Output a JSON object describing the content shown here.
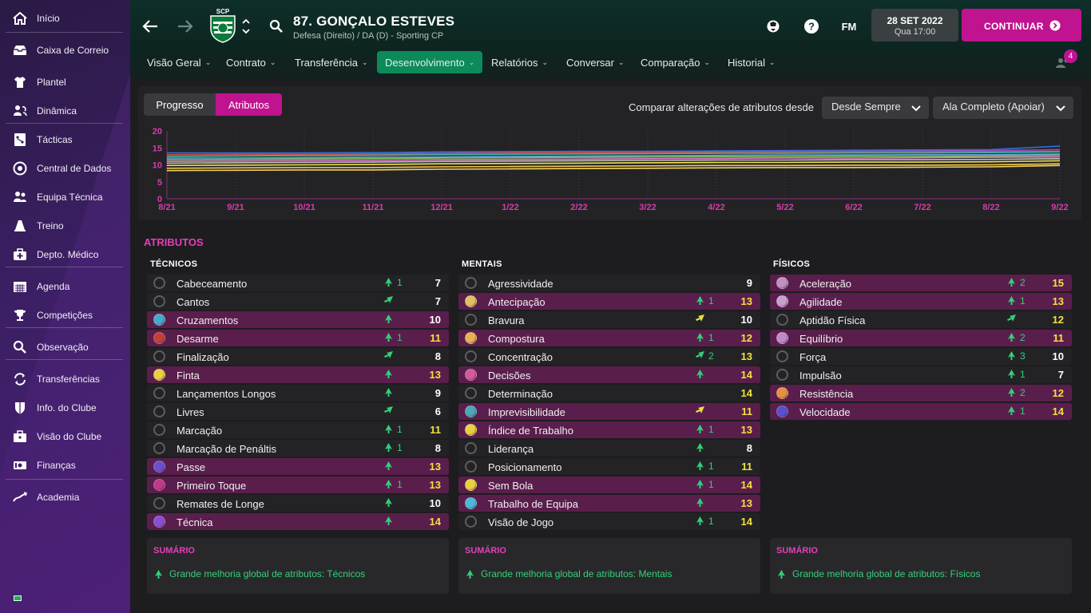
{
  "sidebar": {
    "items": [
      {
        "label": "Início",
        "icon": "home-icon"
      },
      {
        "label": "Caixa de Correio",
        "icon": "inbox-icon"
      },
      {
        "label": "Plantel",
        "icon": "shirt-icon"
      },
      {
        "label": "Dinâmica",
        "icon": "people-icon"
      },
      {
        "label": "Tácticas",
        "icon": "tactics-icon"
      },
      {
        "label": "Central de Dados",
        "icon": "data-hub-icon"
      },
      {
        "label": "Equipa Técnica",
        "icon": "staff-icon"
      },
      {
        "label": "Treino",
        "icon": "cone-icon"
      },
      {
        "label": "Depto. Médico",
        "icon": "medical-kit-icon"
      },
      {
        "label": "Agenda",
        "icon": "calendar-icon"
      },
      {
        "label": "Competições",
        "icon": "trophy-icon"
      },
      {
        "label": "Observação",
        "icon": "magnifier-icon"
      },
      {
        "label": "Transferências",
        "icon": "transfer-icon"
      },
      {
        "label": "Info. do Clube",
        "icon": "shield-icon"
      },
      {
        "label": "Visão do Clube",
        "icon": "briefcase-icon"
      },
      {
        "label": "Finanças",
        "icon": "money-icon"
      },
      {
        "label": "Academia",
        "icon": "academy-icon"
      }
    ]
  },
  "header": {
    "club_badge_text": "SCP",
    "player_name": "87. GONÇALO ESTEVES",
    "player_subtitle": "Defesa (Direito) / DA (D) - Sporting CP",
    "fm_label": "FM",
    "date": "28 SET 2022",
    "date_sub": "Qua 17:00",
    "continue_label": "CONTINUAR",
    "notification_count": "4"
  },
  "tabs": [
    {
      "label": "Visão Geral"
    },
    {
      "label": "Contrato"
    },
    {
      "label": "Transferência"
    },
    {
      "label": "Desenvolvimento"
    },
    {
      "label": "Relatórios"
    },
    {
      "label": "Conversar"
    },
    {
      "label": "Comparação"
    },
    {
      "label": "Historial"
    }
  ],
  "development": {
    "view_toggle": {
      "progress": "Progresso",
      "attributes": "Atributos"
    },
    "compare_label": "Comparar alterações de atributos desde",
    "since_dropdown": "Desde Sempre",
    "role_dropdown": "Ala Completo (Apoiar)"
  },
  "chart_data": {
    "type": "line",
    "x": [
      "8/21",
      "9/21",
      "10/21",
      "11/21",
      "12/21",
      "1/22",
      "2/22",
      "3/22",
      "4/22",
      "5/22",
      "6/22",
      "7/22",
      "8/22",
      "9/22"
    ],
    "y_ticks": [
      "20",
      "15",
      "10",
      "5",
      "0"
    ],
    "ylim": [
      0,
      20
    ],
    "series": [
      {
        "color": "#2f6fd6",
        "values": [
          13.5,
          13.5,
          13.5,
          13.6,
          13.8,
          13.9,
          14,
          14,
          14.1,
          14.2,
          14.3,
          14.4,
          14.5,
          15.5
        ]
      },
      {
        "color": "#8a4fd8",
        "values": [
          13,
          13,
          13,
          13.2,
          13.4,
          13.6,
          13.7,
          13.8,
          13.9,
          14,
          14,
          14.1,
          14.2,
          14.5
        ]
      },
      {
        "color": "#c94b3f",
        "values": [
          13,
          13.1,
          13.1,
          13.2,
          13.3,
          13.5,
          13.6,
          13.6,
          13.7,
          13.7,
          13.8,
          13.8,
          13.9,
          14
        ]
      },
      {
        "color": "#3fb6a5",
        "values": [
          12.5,
          12.6,
          12.7,
          12.8,
          13,
          13.1,
          13.2,
          13.3,
          13.4,
          13.4,
          13.5,
          13.5,
          13.6,
          13.8
        ]
      },
      {
        "color": "#5fa8d9",
        "values": [
          12,
          12,
          12.1,
          12.2,
          12.3,
          12.5,
          12.6,
          12.7,
          12.8,
          12.9,
          12.9,
          13,
          13,
          13.2
        ]
      },
      {
        "color": "#7ec25a",
        "values": [
          11.5,
          11.6,
          11.7,
          11.8,
          12,
          12.1,
          12.2,
          12.3,
          12.4,
          12.4,
          12.5,
          12.5,
          12.6,
          12.8
        ]
      },
      {
        "color": "#e07cc7",
        "values": [
          11,
          11.1,
          11.2,
          11.3,
          11.5,
          11.6,
          11.7,
          11.8,
          11.9,
          12,
          12,
          12.1,
          12.2,
          12.3
        ]
      },
      {
        "color": "#c0c0c0",
        "values": [
          10.5,
          10.6,
          10.7,
          10.8,
          11,
          11.1,
          11.2,
          11.3,
          11.4,
          11.4,
          11.5,
          11.5,
          11.6,
          11.8
        ]
      },
      {
        "color": "#f2e24a",
        "values": [
          9.8,
          9.9,
          10,
          10.1,
          10.3,
          10.4,
          10.5,
          10.6,
          10.7,
          10.7,
          10.8,
          10.8,
          10.9,
          11.2
        ]
      },
      {
        "color": "#f5c84a",
        "values": [
          9,
          9.1,
          9.2,
          9.2,
          9.4,
          9.5,
          9.6,
          9.7,
          9.8,
          9.8,
          9.9,
          9.9,
          10,
          10.3
        ]
      },
      {
        "color": "#f0d35a",
        "values": [
          8.3,
          8.4,
          8.5,
          8.5,
          8.7,
          8.8,
          8.9,
          9,
          9.1,
          9.2,
          9.2,
          9.3,
          9.4,
          9.8
        ]
      }
    ]
  },
  "attributes_title": "ATRIBUTOS",
  "columns": [
    {
      "title": "TÉCNICOS",
      "rows": [
        {
          "name": "Cabeceamento",
          "arrow": "up",
          "change": "1",
          "value": "7",
          "hl": false,
          "color": "#6a6a6e",
          "yellow": false
        },
        {
          "name": "Cantos",
          "arrow": "diag",
          "change": "",
          "value": "7",
          "hl": false,
          "color": "#6a6a6e",
          "yellow": false
        },
        {
          "name": "Cruzamentos",
          "arrow": "up",
          "change": "",
          "value": "10",
          "hl": true,
          "color": "#4aa8c8",
          "yellow": false
        },
        {
          "name": "Desarme",
          "arrow": "up",
          "change": "1",
          "value": "11",
          "hl": true,
          "color": "#c0403a",
          "yellow": true
        },
        {
          "name": "Finalização",
          "arrow": "diag",
          "change": "",
          "value": "8",
          "hl": false,
          "color": "#6a6a6e",
          "yellow": false
        },
        {
          "name": "Finta",
          "arrow": "up",
          "change": "",
          "value": "13",
          "hl": true,
          "color": "#e8d040",
          "yellow": true
        },
        {
          "name": "Lançamentos Longos",
          "arrow": "up",
          "change": "",
          "value": "9",
          "hl": false,
          "color": "#6a6a6e",
          "yellow": false
        },
        {
          "name": "Livres",
          "arrow": "diag",
          "change": "",
          "value": "6",
          "hl": false,
          "color": "#6a6a6e",
          "yellow": false
        },
        {
          "name": "Marcação",
          "arrow": "up",
          "change": "1",
          "value": "11",
          "hl": false,
          "color": "#6a6a6e",
          "yellow": true
        },
        {
          "name": "Marcação de Penáltis",
          "arrow": "up",
          "change": "1",
          "value": "8",
          "hl": false,
          "color": "#6a6a6e",
          "yellow": false
        },
        {
          "name": "Passe",
          "arrow": "up",
          "change": "",
          "value": "13",
          "hl": true,
          "color": "#6a4fd0",
          "yellow": true
        },
        {
          "name": "Primeiro Toque",
          "arrow": "up",
          "change": "1",
          "value": "13",
          "hl": true,
          "color": "#c03a8a",
          "yellow": true
        },
        {
          "name": "Remates de Longe",
          "arrow": "up",
          "change": "",
          "value": "10",
          "hl": false,
          "color": "#6a6a6e",
          "yellow": false
        },
        {
          "name": "Técnica",
          "arrow": "up",
          "change": "",
          "value": "14",
          "hl": true,
          "color": "#8a4fd0",
          "yellow": true
        }
      ]
    },
    {
      "title": "MENTAIS",
      "rows": [
        {
          "name": "Agressividade",
          "arrow": "",
          "change": "",
          "value": "9",
          "hl": false,
          "color": "#6a6a6e",
          "yellow": false
        },
        {
          "name": "Antecipação",
          "arrow": "up",
          "change": "1",
          "value": "13",
          "hl": true,
          "color": "#e0c060",
          "yellow": true
        },
        {
          "name": "Bravura",
          "arrow": "diagy",
          "change": "",
          "value": "10",
          "hl": false,
          "color": "#6a6a6e",
          "yellow": false
        },
        {
          "name": "Compostura",
          "arrow": "up",
          "change": "1",
          "value": "12",
          "hl": true,
          "color": "#e8b050",
          "yellow": true
        },
        {
          "name": "Concentração",
          "arrow": "diag",
          "change": "2",
          "value": "13",
          "hl": false,
          "color": "#6a6a6e",
          "yellow": true
        },
        {
          "name": "Decisões",
          "arrow": "up",
          "change": "",
          "value": "14",
          "hl": true,
          "color": "#d05a9a",
          "yellow": true
        },
        {
          "name": "Determinação",
          "arrow": "",
          "change": "",
          "value": "14",
          "hl": false,
          "color": "#6a6a6e",
          "yellow": true
        },
        {
          "name": "Imprevisibilidade",
          "arrow": "diagy",
          "change": "",
          "value": "11",
          "hl": true,
          "color": "#4aa8b8",
          "yellow": true
        },
        {
          "name": "Índice de Trabalho",
          "arrow": "up",
          "change": "1",
          "value": "13",
          "hl": true,
          "color": "#e8d040",
          "yellow": true
        },
        {
          "name": "Liderança",
          "arrow": "up",
          "change": "",
          "value": "8",
          "hl": false,
          "color": "#6a6a6e",
          "yellow": false
        },
        {
          "name": "Posicionamento",
          "arrow": "up",
          "change": "1",
          "value": "11",
          "hl": false,
          "color": "#6a6a6e",
          "yellow": true
        },
        {
          "name": "Sem Bola",
          "arrow": "up",
          "change": "1",
          "value": "14",
          "hl": true,
          "color": "#e8d040",
          "yellow": true
        },
        {
          "name": "Trabalho de Equipa",
          "arrow": "up",
          "change": "",
          "value": "13",
          "hl": true,
          "color": "#4ab8d8",
          "yellow": true
        },
        {
          "name": "Visão de Jogo",
          "arrow": "up",
          "change": "1",
          "value": "14",
          "hl": false,
          "color": "#6a6a6e",
          "yellow": true
        }
      ]
    },
    {
      "title": "FÍSICOS",
      "rows": [
        {
          "name": "Aceleração",
          "arrow": "up",
          "change": "2",
          "value": "15",
          "hl": true,
          "color": "#c090c0",
          "yellow": true
        },
        {
          "name": "Agilidade",
          "arrow": "up",
          "change": "1",
          "value": "13",
          "hl": true,
          "color": "#c8a0d0",
          "yellow": true
        },
        {
          "name": "Aptidão Física",
          "arrow": "diag",
          "change": "",
          "value": "12",
          "hl": false,
          "color": "#6a6a6e",
          "yellow": true
        },
        {
          "name": "Equilíbrio",
          "arrow": "up",
          "change": "2",
          "value": "11",
          "hl": true,
          "color": "#c08ac8",
          "yellow": true
        },
        {
          "name": "Força",
          "arrow": "up",
          "change": "3",
          "value": "10",
          "hl": false,
          "color": "#6a6a6e",
          "yellow": false
        },
        {
          "name": "Impulsão",
          "arrow": "up",
          "change": "1",
          "value": "7",
          "hl": false,
          "color": "#6a6a6e",
          "yellow": false
        },
        {
          "name": "Resistência",
          "arrow": "up",
          "change": "2",
          "value": "12",
          "hl": true,
          "color": "#e89040",
          "yellow": true
        },
        {
          "name": "Velocidade",
          "arrow": "up",
          "change": "1",
          "value": "14",
          "hl": true,
          "color": "#5a4fd0",
          "yellow": true
        }
      ]
    }
  ],
  "summaries": [
    {
      "title": "SUMÁRIO",
      "text": "Grande melhoria global de atributos: Técnicos"
    },
    {
      "title": "SUMÁRIO",
      "text": "Grande melhoria global de atributos: Mentais"
    },
    {
      "title": "SUMÁRIO",
      "text": "Grande melhoria global de atributos: Físicos"
    }
  ]
}
